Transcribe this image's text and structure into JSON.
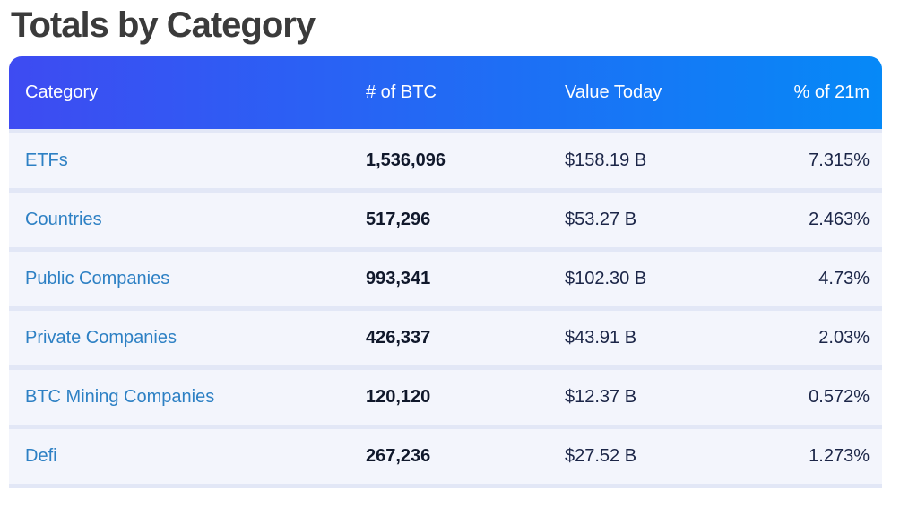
{
  "page": {
    "title": "Totals by Category"
  },
  "table": {
    "columns": [
      {
        "key": "category",
        "label": "Category"
      },
      {
        "key": "btc",
        "label": "# of BTC"
      },
      {
        "key": "value",
        "label": "Value Today"
      },
      {
        "key": "pct",
        "label": "% of 21m"
      }
    ],
    "rows": [
      {
        "category": "ETFs",
        "btc": "1,536,096",
        "value": "$158.19 B",
        "pct": "7.315%"
      },
      {
        "category": "Countries",
        "btc": "517,296",
        "value": "$53.27 B",
        "pct": "2.463%"
      },
      {
        "category": "Public Companies",
        "btc": "993,341",
        "value": "$102.30 B",
        "pct": "4.73%"
      },
      {
        "category": "Private Companies",
        "btc": "426,337",
        "value": "$43.91 B",
        "pct": "2.03%"
      },
      {
        "category": "BTC Mining Companies",
        "btc": "120,120",
        "value": "$12.37 B",
        "pct": "0.572%"
      },
      {
        "category": "Defi",
        "btc": "267,236",
        "value": "$27.52 B",
        "pct": "1.273%"
      }
    ]
  },
  "colors": {
    "header_gradient_start": "#3e4bf2",
    "header_gradient_end": "#0689f7",
    "link": "#2d80c4",
    "row_background": "#f3f5fc",
    "separator": "#e2e7f6",
    "title_text": "#3b3b3b",
    "bold_number_text": "#10182b",
    "value_text": "#1b2547"
  }
}
